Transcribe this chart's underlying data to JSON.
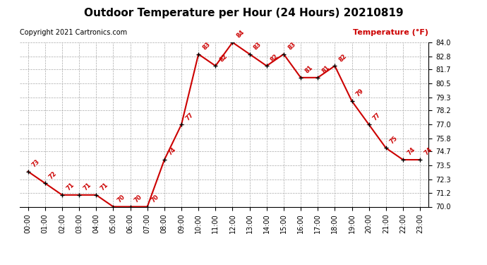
{
  "title": "Outdoor Temperature per Hour (24 Hours) 20210819",
  "copyright": "Copyright 2021 Cartronics.com",
  "legend_label": "Temperature (°F)",
  "hours": [
    "00:00",
    "01:00",
    "02:00",
    "03:00",
    "04:00",
    "05:00",
    "06:00",
    "07:00",
    "08:00",
    "09:00",
    "10:00",
    "11:00",
    "12:00",
    "13:00",
    "14:00",
    "15:00",
    "16:00",
    "17:00",
    "18:00",
    "19:00",
    "20:00",
    "21:00",
    "22:00",
    "23:00"
  ],
  "temps": [
    73,
    72,
    71,
    71,
    71,
    70,
    70,
    70,
    74,
    77,
    83,
    82,
    84,
    83,
    82,
    83,
    81,
    81,
    82,
    79,
    77,
    75,
    74,
    74
  ],
  "ylim": [
    70.0,
    84.0
  ],
  "yticks": [
    70.0,
    71.2,
    72.3,
    73.5,
    74.7,
    75.8,
    77.0,
    78.2,
    79.3,
    80.5,
    81.7,
    82.8,
    84.0
  ],
  "line_color": "#cc0000",
  "marker_color": "black",
  "bg_color": "white",
  "grid_color": "#aaaaaa",
  "title_color": "black",
  "label_color": "#cc0000",
  "copyright_color": "black",
  "title_fontsize": 11,
  "annotation_fontsize": 6,
  "tick_fontsize": 7,
  "copyright_fontsize": 7,
  "legend_fontsize": 8
}
